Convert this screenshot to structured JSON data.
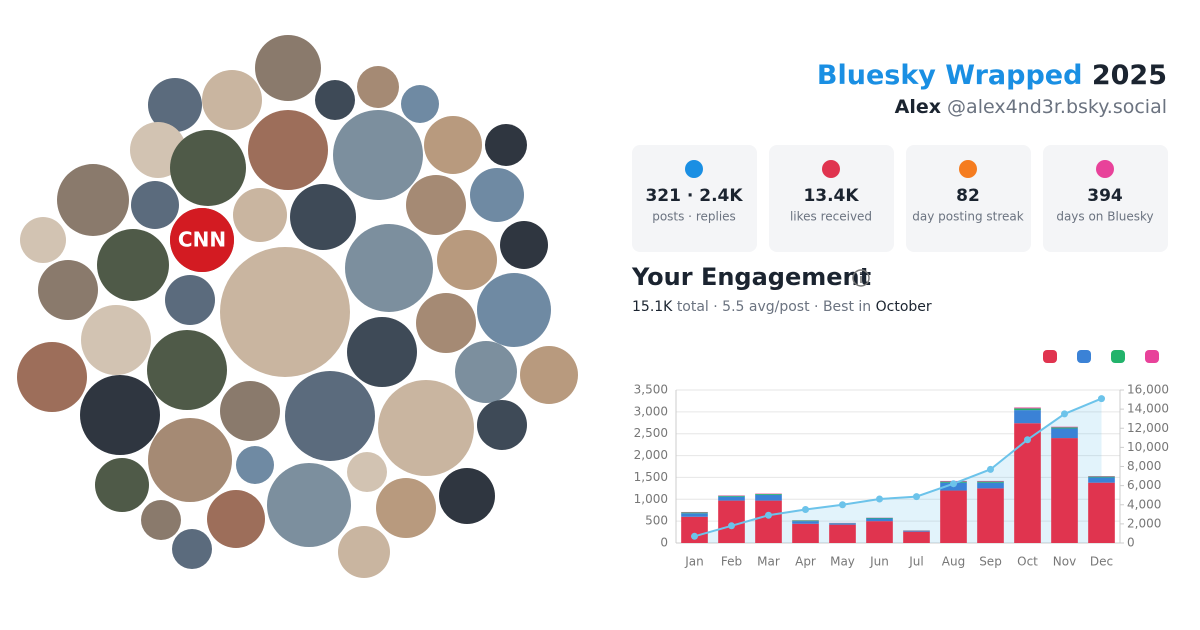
{
  "header": {
    "brand": "Bluesky Wrapped",
    "year": "2025",
    "name": "Alex",
    "handle": "@alex4nd3r.bsky.social"
  },
  "collage_text": "CNN",
  "stats": [
    {
      "value": "321 · 2.4K",
      "label": "posts · replies"
    },
    {
      "value": "13.4K",
      "label": "likes received"
    },
    {
      "value": "82",
      "label": "day posting streak"
    },
    {
      "value": "394",
      "label": "days on Bluesky"
    }
  ],
  "engagement": {
    "title": "Your Engagement",
    "total": "15.1K",
    "summary": "total · 5.5 avg/post · Best in",
    "best": "October"
  },
  "chart_data": {
    "type": "bar",
    "categories": [
      "Jan",
      "Feb",
      "Mar",
      "Apr",
      "May",
      "Jun",
      "Jul",
      "Aug",
      "Sep",
      "Oct",
      "Nov",
      "Dec"
    ],
    "series": [
      {
        "color": "#e0344f",
        "values": [
          600,
          970,
          970,
          440,
          420,
          500,
          260,
          1200,
          1250,
          2740,
          2400,
          1380
        ]
      },
      {
        "color": "#3b82d6",
        "values": [
          80,
          90,
          130,
          60,
          30,
          60,
          20,
          180,
          130,
          300,
          220,
          120
        ]
      },
      {
        "color": "#22b36b",
        "values": [
          20,
          20,
          20,
          15,
          5,
          15,
          5,
          25,
          25,
          40,
          25,
          20
        ]
      },
      {
        "color": "#e8429a",
        "values": [
          10,
          10,
          10,
          5,
          5,
          5,
          5,
          15,
          15,
          20,
          15,
          10
        ]
      },
      {
        "type": "line",
        "axis": "y2",
        "color": "#6cc3ea",
        "values": [
          700,
          1800,
          2900,
          3500,
          4000,
          4600,
          4850,
          6200,
          7700,
          10800,
          13500,
          15100
        ]
      }
    ],
    "ylim": [
      0,
      3500
    ],
    "yticks": [
      0,
      500,
      {
        "value": 1000,
        "label": "1,000"
      },
      {
        "value": 1500,
        "label": "1,500"
      },
      {
        "value": 2000,
        "label": "2,000"
      },
      {
        "value": 2500,
        "label": "2,500"
      },
      {
        "value": 3000,
        "label": "3,000"
      },
      {
        "value": 3500,
        "label": "3,500"
      }
    ],
    "y2lim": [
      0,
      16000
    ],
    "y2ticks": [
      0,
      {
        "value": 2000,
        "label": "2,000"
      },
      {
        "value": 4000,
        "label": "4,000"
      },
      {
        "value": 6000,
        "label": "6,000"
      },
      {
        "value": 8000,
        "label": "8,000"
      },
      {
        "value": 10000,
        "label": "10,000"
      },
      {
        "value": 12000,
        "label": "12,000"
      },
      {
        "value": 14000,
        "label": "14,000"
      },
      {
        "value": 16000,
        "label": "16,000"
      }
    ],
    "grid": true
  }
}
